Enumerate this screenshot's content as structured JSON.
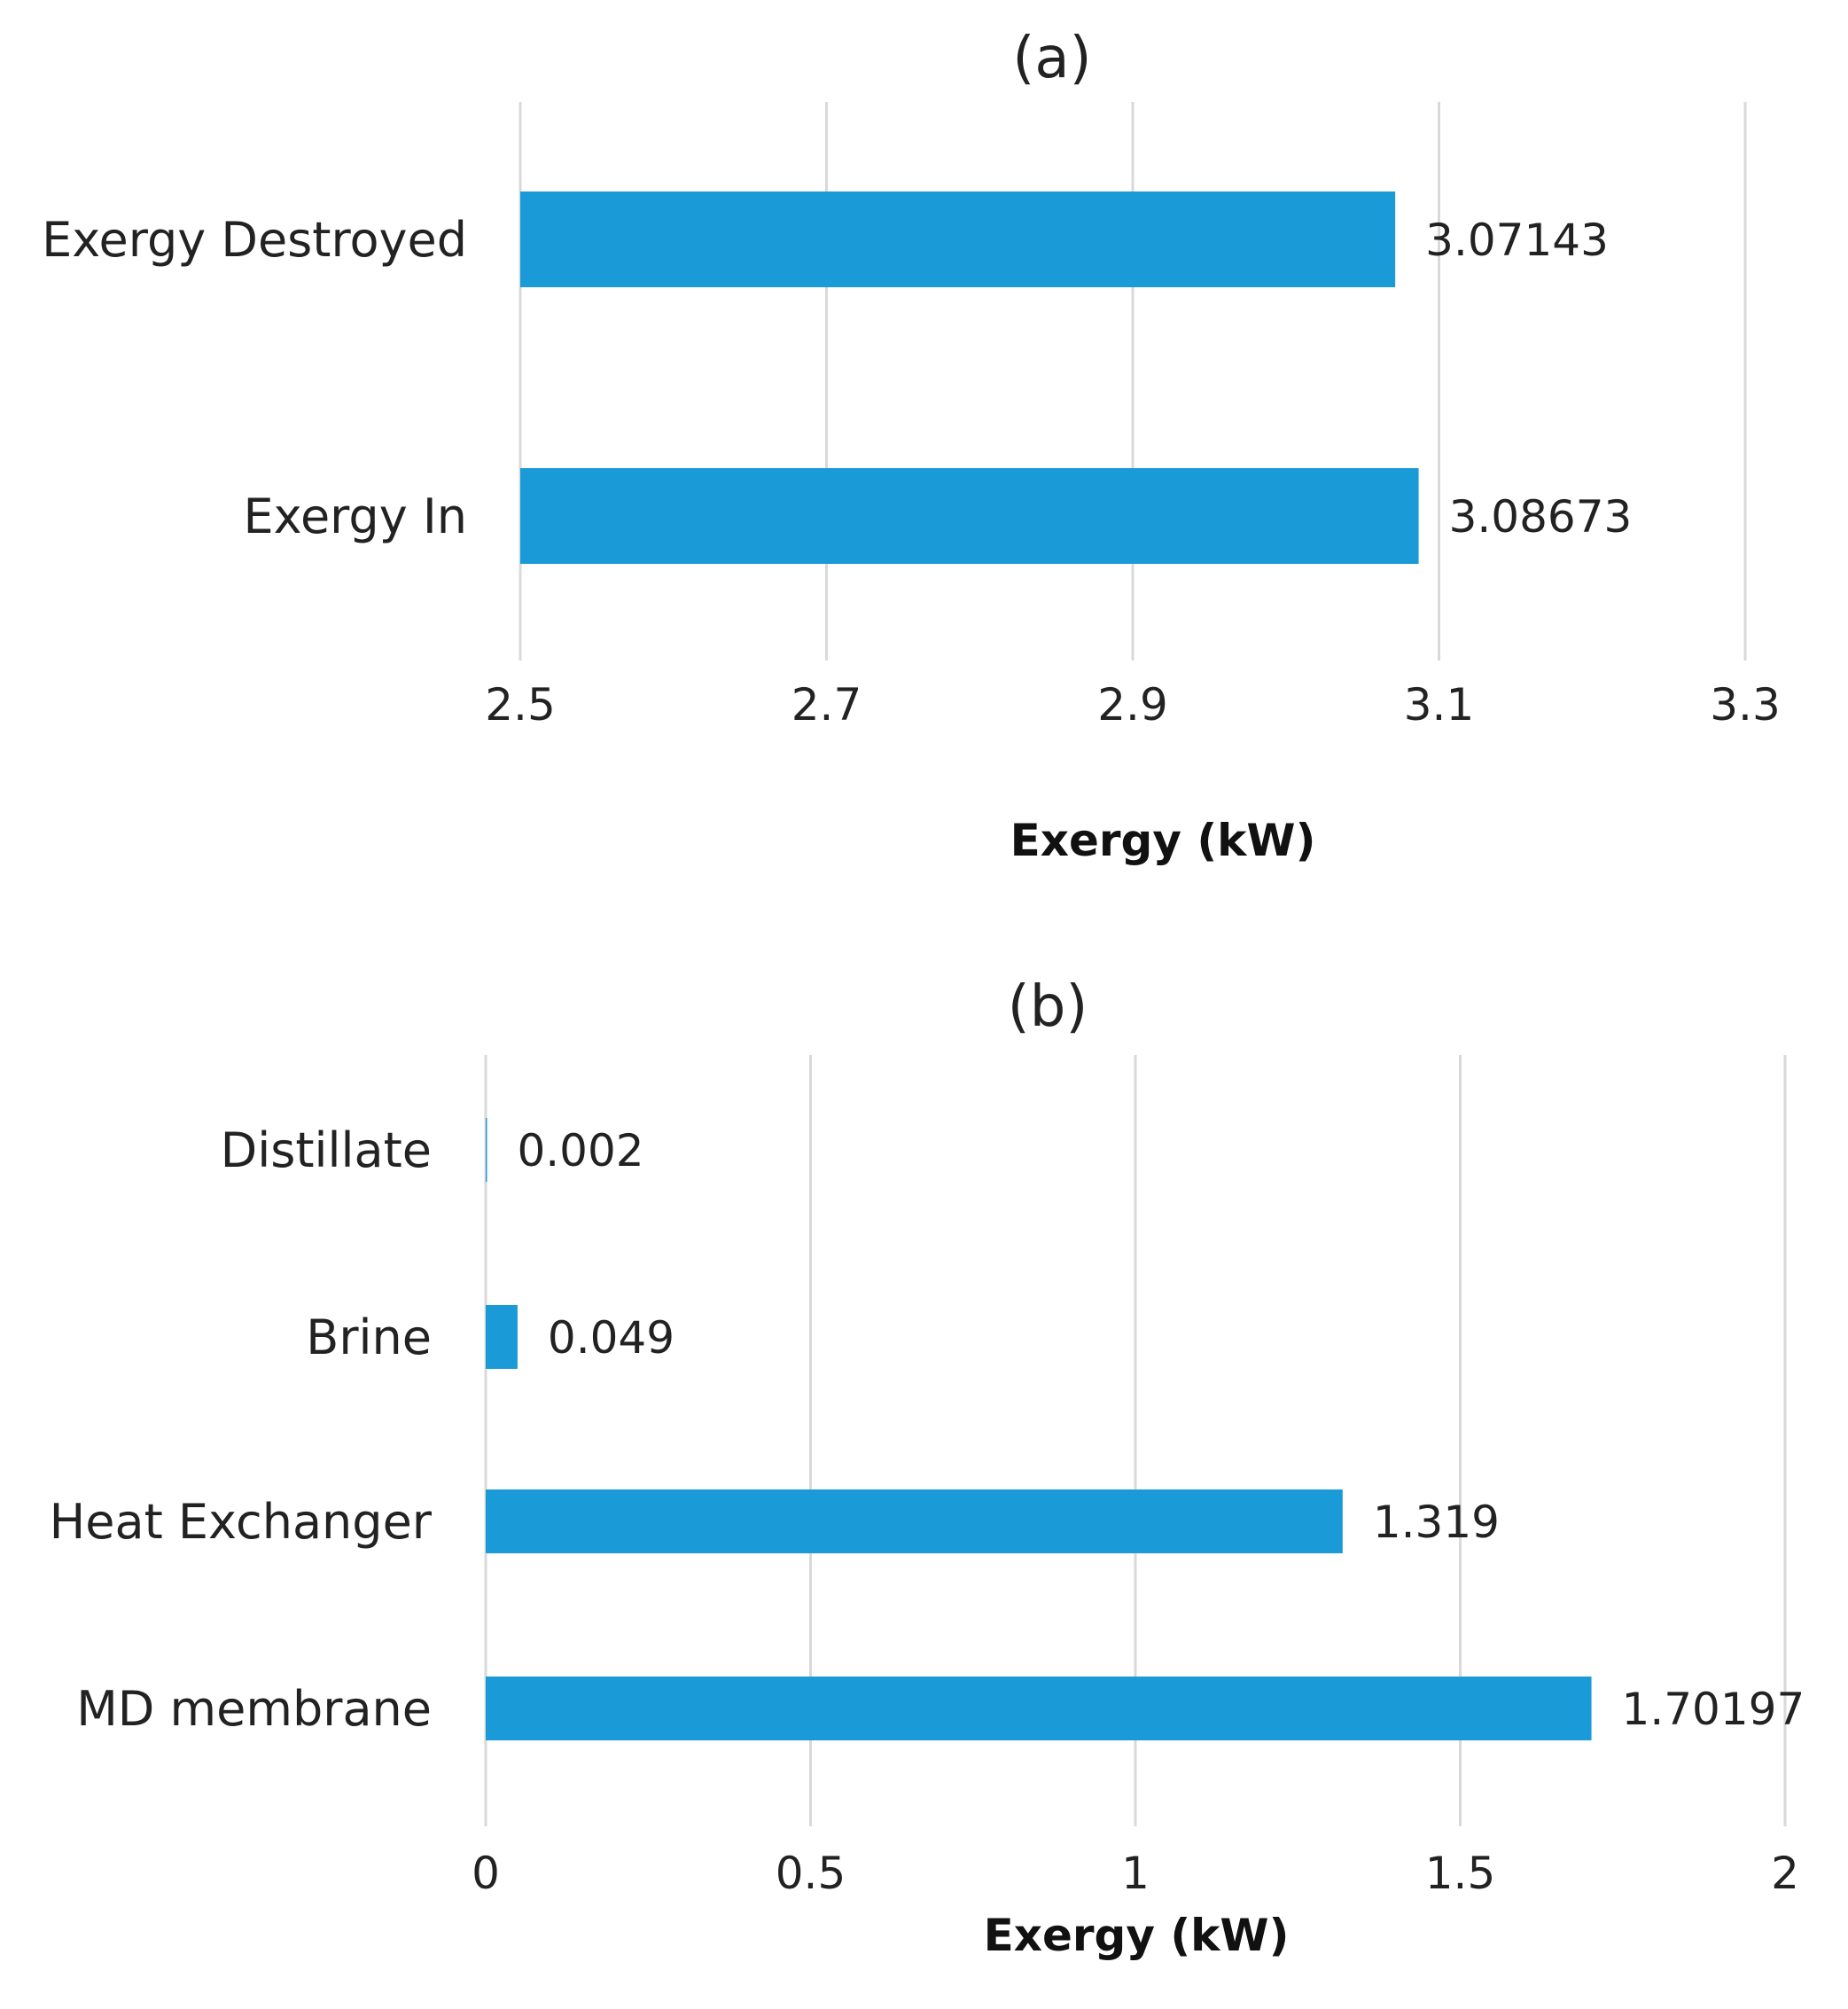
{
  "colors": {
    "bar": "#1a9ad6",
    "grid": "#d9d9d9",
    "text": "#222222"
  },
  "chart_data": [
    {
      "type": "bar",
      "orientation": "horizontal",
      "title": "(a)",
      "categories": [
        "Exergy Destroyed",
        "Exergy In"
      ],
      "values": [
        3.07143,
        3.08673
      ],
      "value_labels": [
        "3.07143",
        "3.08673"
      ],
      "xlabel": "Exergy (kW)",
      "ylabel": "",
      "xlim": [
        2.5,
        3.3
      ],
      "ticks": [
        2.5,
        2.7,
        2.9,
        3.1,
        3.3
      ],
      "tick_labels": [
        "2.5",
        "2.7",
        "2.9",
        "3.1",
        "3.3"
      ],
      "grid": true,
      "legend": "none"
    },
    {
      "type": "bar",
      "orientation": "horizontal",
      "title": "(b)",
      "categories": [
        "Distillate",
        "Brine",
        "Heat Exchanger",
        "MD membrane"
      ],
      "values": [
        0.002,
        0.049,
        1.319,
        1.70197
      ],
      "value_labels": [
        "0.002",
        "0.049",
        "1.319",
        "1.70197"
      ],
      "xlabel": "Exergy (kW)",
      "ylabel": "",
      "xlim": [
        0,
        2
      ],
      "ticks": [
        0,
        0.5,
        1,
        1.5,
        2
      ],
      "tick_labels": [
        "0",
        "0.5",
        "1",
        "1.5",
        "2"
      ],
      "grid": true,
      "legend": "none"
    }
  ]
}
